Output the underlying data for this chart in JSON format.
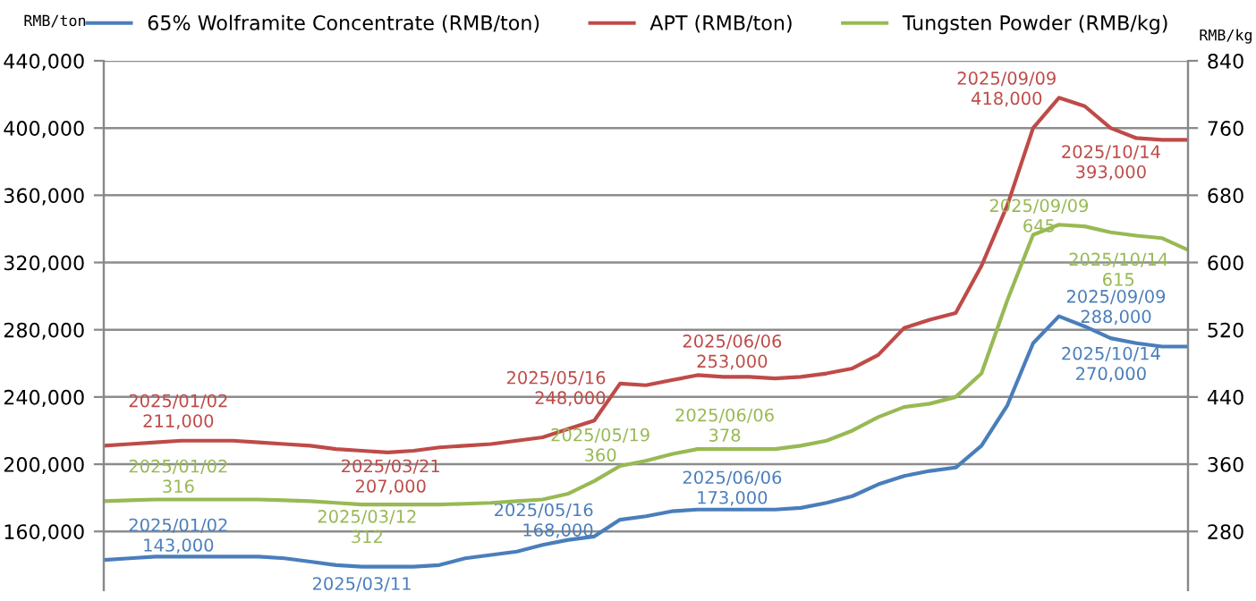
{
  "chart_data": {
    "type": "line",
    "ylabel": "RMB/ton",
    "y2label": "RMB/kg",
    "categories": [
      null,
      null,
      null,
      null,
      null,
      null,
      null,
      null,
      null,
      null,
      null,
      null,
      null,
      null,
      null,
      null,
      null,
      null,
      null,
      null,
      null,
      null,
      null,
      null,
      null,
      null,
      null,
      null,
      null,
      null,
      null,
      null,
      null,
      null,
      null,
      null,
      null,
      null,
      null,
      null,
      null,
      null,
      null
    ],
    "series": [
      {
        "name": "65% Wolframite Concentrate (RMB/ton)",
        "color": "#4a7ebb",
        "values": [
          143000,
          144000,
          145000,
          145000,
          145000,
          145000,
          145000,
          144000,
          142000,
          140000,
          139000,
          139000,
          139000,
          140000,
          144000,
          146000,
          148000,
          152000,
          155000,
          157000,
          167000,
          169000,
          172000,
          173000,
          173000,
          173000,
          173000,
          174000,
          177000,
          181000,
          188000,
          193000,
          196000,
          198000,
          211000,
          235000,
          272000,
          288000,
          282000,
          275000,
          272000,
          270000,
          270000
        ]
      },
      {
        "name": "APT (RMB/ton)",
        "color": "#be4b48",
        "values": [
          211000,
          212000,
          213000,
          214000,
          214000,
          214000,
          213000,
          212000,
          211000,
          209000,
          208000,
          207000,
          208000,
          210000,
          211000,
          212000,
          214000,
          216000,
          221000,
          226000,
          248000,
          247000,
          250000,
          253000,
          252000,
          252000,
          251000,
          252000,
          254000,
          257000,
          265000,
          281000,
          286000,
          290000,
          318000,
          354000,
          400000,
          418000,
          413000,
          400000,
          394000,
          393000,
          393000
        ]
      },
      {
        "name": "Tungsten Powder (RMB/kg)",
        "color": "#98b954",
        "axis": "y2",
        "values": [
          316,
          317,
          318,
          318,
          318,
          318,
          318,
          317,
          316,
          314,
          312,
          312,
          312,
          312,
          313,
          314,
          316,
          318,
          325,
          340,
          358,
          364,
          372,
          378,
          378,
          378,
          378,
          382,
          388,
          400,
          416,
          428,
          432,
          440,
          468,
          555,
          633,
          645,
          643,
          636,
          632,
          629,
          615
        ]
      }
    ],
    "ylim": [
      125000,
      440000
    ],
    "yticks": [
      {
        "value": 160000,
        "label": "160,000"
      },
      {
        "value": 200000,
        "label": "200,000"
      },
      {
        "value": 240000,
        "label": "240,000"
      },
      {
        "value": 280000,
        "label": "280,000"
      },
      {
        "value": 320000,
        "label": "320,000"
      },
      {
        "value": 360000,
        "label": "360,000"
      },
      {
        "value": 400000,
        "label": "400,000"
      },
      {
        "value": 440000,
        "label": "440,000"
      }
    ],
    "y2lim": [
      210,
      840
    ],
    "y2ticks": [
      280,
      360,
      440,
      520,
      600,
      680,
      760,
      840
    ],
    "tick_labels": "y",
    "grid": "y",
    "legend": "top",
    "marker": "none",
    "line_style": "solid",
    "annotations": [
      "2025/01/02\n211,000",
      "2025/03/21\n207,000",
      "2025/05/16\n248,000",
      "2025/06/06\n253,000",
      "2025/09/09\n418,000",
      "2025/10/14\n393,000",
      "2025/01/02\n316",
      "2025/03/12\n312",
      "2025/05/19\n360",
      "2025/06/06\n378",
      "2025/09/09\n645",
      "2025/10/14\n615",
      "2025/01/02\n143,000",
      "2025/03/11",
      "2025/05/16\n168,000",
      "2025/06/06\n173,000",
      "2025/09/09\n288,000",
      "2025/10/14\n270,000"
    ]
  }
}
